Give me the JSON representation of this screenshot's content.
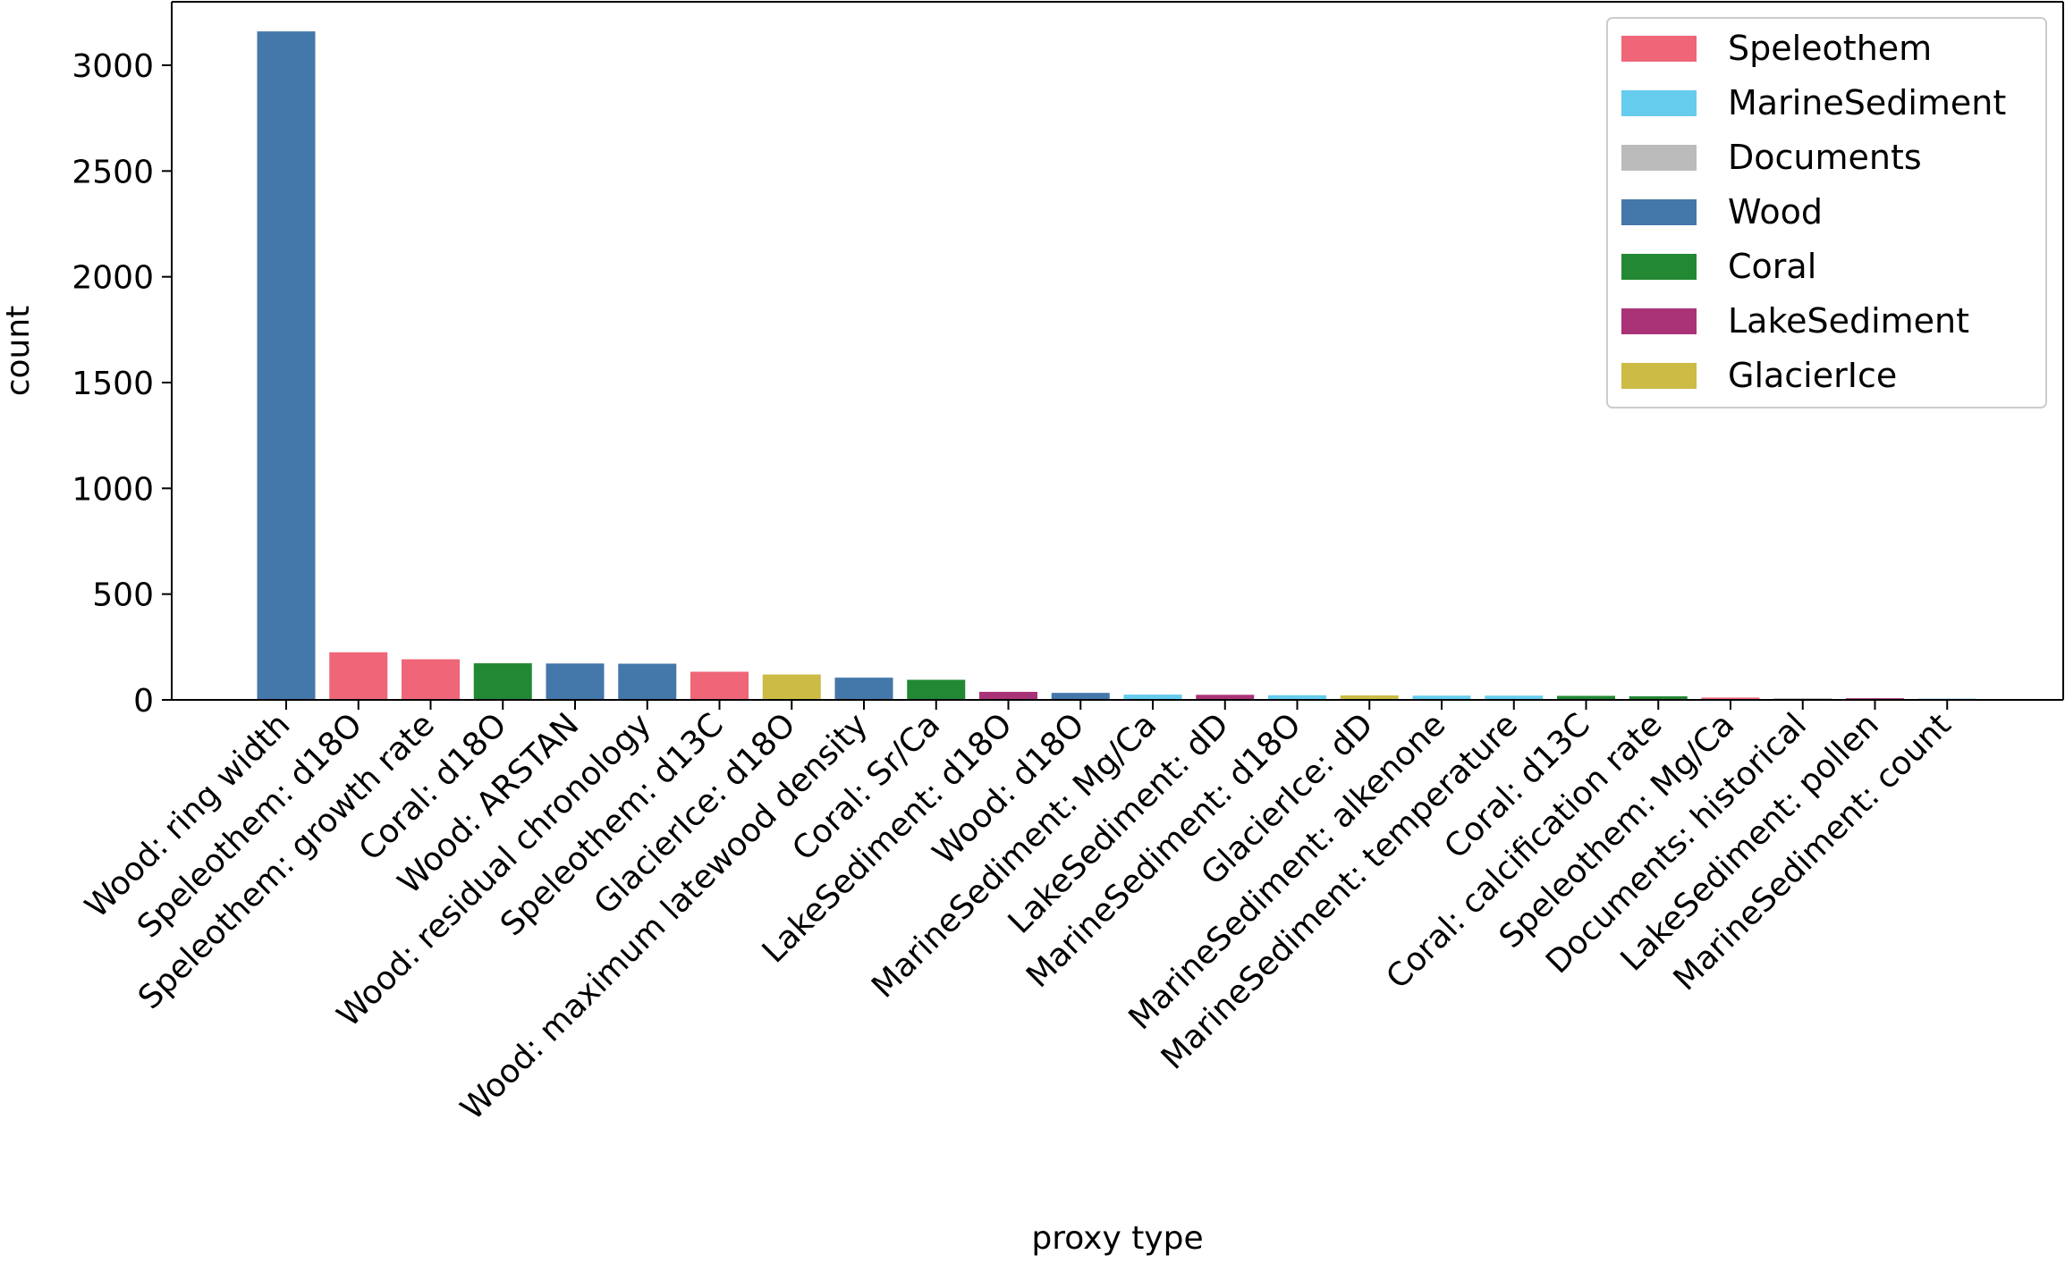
{
  "chart_data": {
    "type": "bar",
    "title": "",
    "xlabel": "proxy type",
    "ylabel": "count",
    "ylim": [
      0,
      3300
    ],
    "yticks": [
      0,
      500,
      1000,
      1500,
      2000,
      2500,
      3000
    ],
    "grid": false,
    "legend_position": "top-right",
    "categories": [
      "Wood: ring width",
      "Speleothem: d18O",
      "Speleothem: growth rate",
      "Coral: d18O",
      "Wood: ARSTAN",
      "Wood: residual chronology",
      "Speleothem: d13C",
      "GlacierIce: d18O",
      "Wood: maximum latewood density",
      "Coral: Sr/Ca",
      "LakeSediment: d18O",
      "Wood: d18O",
      "MarineSediment: Mg/Ca",
      "LakeSediment: dD",
      "MarineSediment: d18O",
      "GlacierIce: dD",
      "MarineSediment: alkenone",
      "MarineSediment: temperature",
      "Coral: d13C",
      "Coral: calcification rate",
      "Speleothem: Mg/Ca",
      "Documents: historical",
      "LakeSediment: pollen",
      "MarineSediment: count"
    ],
    "values": [
      3160,
      225,
      192,
      173,
      172,
      171,
      133,
      120,
      105,
      95,
      38,
      33,
      25,
      24,
      22,
      21,
      20,
      20,
      19,
      17,
      11,
      8,
      8,
      6
    ],
    "groups": [
      "Wood",
      "Speleothem",
      "Speleothem",
      "Coral",
      "Wood",
      "Wood",
      "Speleothem",
      "GlacierIce",
      "Wood",
      "Coral",
      "LakeSediment",
      "Wood",
      "MarineSediment",
      "LakeSediment",
      "MarineSediment",
      "GlacierIce",
      "MarineSediment",
      "MarineSediment",
      "Coral",
      "Coral",
      "Speleothem",
      "Documents",
      "LakeSediment",
      "MarineSediment"
    ],
    "legend": [
      {
        "name": "Speleothem",
        "color": "#ee6677"
      },
      {
        "name": "MarineSediment",
        "color": "#66ccee"
      },
      {
        "name": "Documents",
        "color": "#bbbbbb"
      },
      {
        "name": "Wood",
        "color": "#4477aa"
      },
      {
        "name": "Coral",
        "color": "#228833"
      },
      {
        "name": "LakeSediment",
        "color": "#aa3377"
      },
      {
        "name": "GlacierIce",
        "color": "#ccbb44"
      }
    ]
  }
}
